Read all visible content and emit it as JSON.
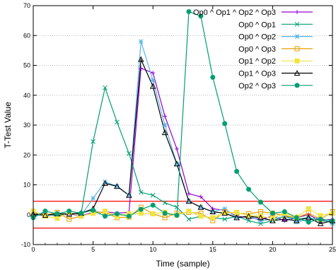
{
  "chart_data": {
    "type": "line",
    "title": "",
    "xlabel": "Time (sample)",
    "ylabel": "T-Test Value",
    "xlim": [
      0,
      25
    ],
    "ylim": [
      -10,
      70
    ],
    "x_ticks": [
      "0",
      "5",
      "10",
      "15",
      "20",
      "25"
    ],
    "y_ticks": [
      "-10",
      "0",
      "10",
      "20",
      "30",
      "40",
      "50",
      "60",
      "70"
    ],
    "x_tick_values": [
      0,
      5,
      10,
      15,
      20,
      25
    ],
    "y_tick_values": [
      -10,
      0,
      10,
      20,
      30,
      40,
      50,
      60,
      70
    ],
    "grid": "dotted horizontal",
    "legend_position": "top-right",
    "threshold_lines": [
      4.5,
      -4.5
    ],
    "threshold_color": "#ff0000",
    "x": [
      0,
      1,
      2,
      3,
      4,
      5,
      6,
      7,
      8,
      9,
      10,
      11,
      12,
      13,
      14,
      15,
      16,
      17,
      18,
      19,
      20,
      21,
      22,
      23,
      24,
      25
    ],
    "series": [
      {
        "name": "Op0 ^ Op1 ^ Op2 ^ Op3",
        "color": "#9400d3",
        "marker": "plus",
        "values": [
          0.5,
          0.2,
          -0.5,
          0.3,
          -0.4,
          0.8,
          1.0,
          0.5,
          0.8,
          49,
          47.5,
          33,
          22,
          7,
          6,
          2,
          1.5,
          -0.5,
          -1,
          -1.5,
          -0.5,
          -2,
          -1,
          0,
          -2,
          -1.5
        ]
      },
      {
        "name": "Op0 ^ Op1",
        "color": "#009e73",
        "marker": "cross",
        "values": [
          -0.5,
          0.3,
          -0.5,
          0.5,
          0.2,
          24.5,
          42.5,
          31,
          20.5,
          7.5,
          6.5,
          4,
          2.5,
          -1.5,
          -0.5,
          -1,
          -1.5,
          -0.5,
          -2,
          -3,
          -2,
          -0.5,
          -1.5,
          -1,
          -2,
          -2.5
        ]
      },
      {
        "name": "Op0 ^ Op2",
        "color": "#56b4e9",
        "marker": "star",
        "values": [
          0.5,
          -0.5,
          0.2,
          0.5,
          -0.3,
          5.5,
          11,
          9.5,
          6.5,
          58,
          45,
          30,
          17,
          4.5,
          2.5,
          1,
          2,
          -1,
          -0.5,
          -2,
          -1.5,
          -0.5,
          -2.5,
          -1.5,
          -1,
          -3
        ]
      },
      {
        "name": "Op0 ^ Op3",
        "color": "#e69f00",
        "marker": "square",
        "values": [
          0.3,
          -0.2,
          0.8,
          -1.5,
          -0.5,
          0.5,
          0.8,
          -1,
          -0.8,
          2.5,
          0.3,
          -1,
          0.5,
          0.8,
          0.5,
          -2,
          1,
          0.5,
          0.3,
          1,
          0.5,
          -0.3,
          -1,
          0.5,
          -1.5,
          1
        ]
      },
      {
        "name": "Op1 ^ Op2",
        "color": "#f0e442",
        "marker": "filled-square",
        "values": [
          1.2,
          -0.5,
          -1.2,
          0.8,
          -0.5,
          0.5,
          1.2,
          -0.5,
          0.3,
          0.5,
          0.3,
          0.8,
          -0.2,
          1.2,
          -0.5,
          -1,
          0.5,
          0.8,
          -0.3,
          -0.5,
          -1.2,
          0.5,
          -0.8,
          2,
          -0.3,
          0.5
        ]
      },
      {
        "name": "Op1 ^ Op3",
        "color": "#000000",
        "marker": "triangle",
        "values": [
          0.2,
          -0.2,
          0.3,
          0.2,
          0.5,
          2,
          10.5,
          9.5,
          6.5,
          52,
          43,
          27.5,
          17,
          4.5,
          2.5,
          1,
          0.5,
          -1,
          -0.5,
          -1,
          -2,
          -1.5,
          -2,
          -1,
          -3,
          -2
        ]
      },
      {
        "name": "Op2 ^ Op3",
        "color": "#009e73",
        "marker": "circle",
        "values": [
          -1,
          1.2,
          0.3,
          1.2,
          0.5,
          1.5,
          -0.5,
          0.3,
          -0.5,
          1.8,
          3.2,
          0.5,
          -0.2,
          68,
          66.5,
          46,
          30.5,
          14.5,
          8.5,
          4.2,
          0.5,
          1,
          -1,
          -2.5,
          -1.5,
          -2
        ]
      }
    ]
  }
}
